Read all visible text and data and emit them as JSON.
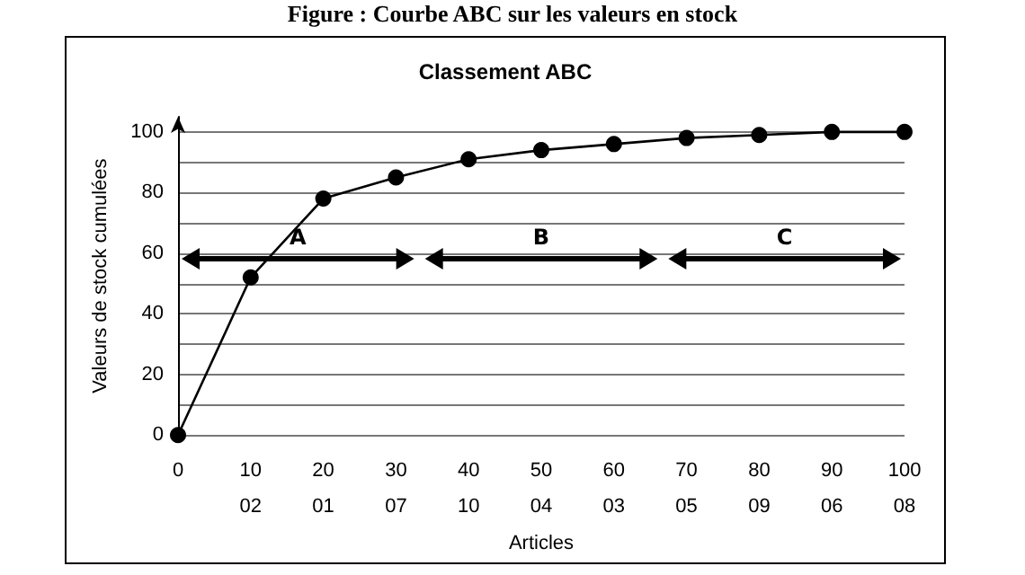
{
  "chart_data": {
    "type": "line",
    "title": "Figure : Courbe ABC sur les valeurs en stock",
    "subtitle": "Classement ABC",
    "xlabel": "Articles",
    "ylabel": "Valeurs de stock cumulées",
    "categories": [
      "0",
      "10\n02",
      "20\n01",
      "30\n07",
      "40\n10",
      "50\n04",
      "60\n03",
      "70\n05",
      "80\n09",
      "90\n06",
      "100\n08"
    ],
    "series": [
      {
        "color": "#000000",
        "values": [
          0,
          52,
          78,
          85,
          91,
          94,
          96,
          98,
          99,
          100,
          100
        ]
      }
    ],
    "ylim": [
      0,
      105
    ],
    "yticks": [
      0,
      {
        "value": 10,
        "label": null
      },
      20,
      {
        "value": 30,
        "label": null
      },
      40,
      {
        "value": 50,
        "label": null
      },
      60,
      {
        "value": 70,
        "label": null
      },
      80,
      {
        "value": 90,
        "label": null
      },
      100
    ],
    "annotations": [
      "A",
      "B",
      "C"
    ],
    "grid": "y",
    "marker": "circle",
    "line_style": "solid"
  }
}
